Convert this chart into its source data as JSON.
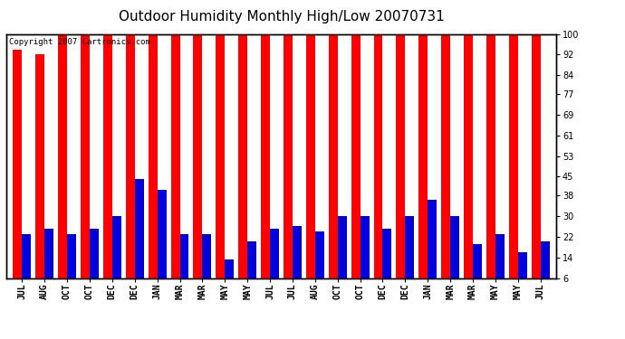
{
  "title": "Outdoor Humidity Monthly High/Low 20070731",
  "copyright": "Copyright 2007 Cartronics.com",
  "categories": [
    "JUL",
    "AUG",
    "OCT",
    "OCT",
    "DEC",
    "DEC",
    "JAN",
    "MAR",
    "MAR",
    "MAY",
    "MAY",
    "JUL",
    "JUL",
    "AUG",
    "OCT",
    "OCT",
    "DEC",
    "DEC",
    "JAN",
    "MAR",
    "MAR",
    "MAY",
    "MAY",
    "JUL"
  ],
  "highs": [
    94,
    92,
    100,
    100,
    100,
    100,
    100,
    100,
    100,
    100,
    100,
    100,
    100,
    100,
    100,
    100,
    100,
    100,
    100,
    100,
    100,
    100,
    100,
    100
  ],
  "lows": [
    23,
    25,
    23,
    25,
    30,
    44,
    40,
    23,
    23,
    13,
    20,
    25,
    26,
    24,
    30,
    30,
    25,
    30,
    36,
    30,
    19,
    23,
    16,
    20
  ],
  "bar_color_high": "#ff0000",
  "bar_color_low": "#0000dd",
  "background_color": "#ffffff",
  "yticks": [
    6,
    14,
    22,
    30,
    38,
    45,
    53,
    61,
    69,
    77,
    84,
    92,
    100
  ],
  "ymin": 6,
  "ymax": 100,
  "grid_color": "#b0b0b0",
  "title_fontsize": 11,
  "tick_fontsize": 7,
  "copyright_fontsize": 6.5,
  "bar_width": 0.4
}
